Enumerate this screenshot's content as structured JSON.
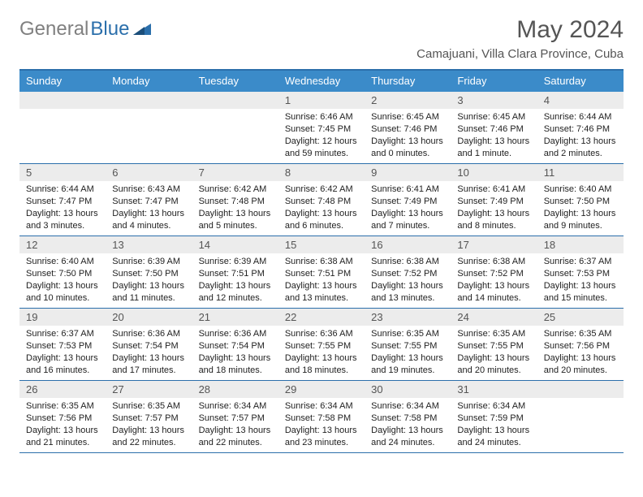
{
  "logo": {
    "gray": "General",
    "blue": "Blue"
  },
  "title": "May 2024",
  "subtitle": "Camajuani, Villa Clara Province, Cuba",
  "colors": {
    "header_bg": "#3b8bc9",
    "border": "#2b6fab",
    "daynum_bg": "#ececec",
    "title_color": "#555555"
  },
  "dayNames": [
    "Sunday",
    "Monday",
    "Tuesday",
    "Wednesday",
    "Thursday",
    "Friday",
    "Saturday"
  ],
  "weeks": [
    [
      {
        "day": "",
        "sunrise": "",
        "sunset": "",
        "daylight": ""
      },
      {
        "day": "",
        "sunrise": "",
        "sunset": "",
        "daylight": ""
      },
      {
        "day": "",
        "sunrise": "",
        "sunset": "",
        "daylight": ""
      },
      {
        "day": "1",
        "sunrise": "Sunrise: 6:46 AM",
        "sunset": "Sunset: 7:45 PM",
        "daylight": "Daylight: 12 hours and 59 minutes."
      },
      {
        "day": "2",
        "sunrise": "Sunrise: 6:45 AM",
        "sunset": "Sunset: 7:46 PM",
        "daylight": "Daylight: 13 hours and 0 minutes."
      },
      {
        "day": "3",
        "sunrise": "Sunrise: 6:45 AM",
        "sunset": "Sunset: 7:46 PM",
        "daylight": "Daylight: 13 hours and 1 minute."
      },
      {
        "day": "4",
        "sunrise": "Sunrise: 6:44 AM",
        "sunset": "Sunset: 7:46 PM",
        "daylight": "Daylight: 13 hours and 2 minutes."
      }
    ],
    [
      {
        "day": "5",
        "sunrise": "Sunrise: 6:44 AM",
        "sunset": "Sunset: 7:47 PM",
        "daylight": "Daylight: 13 hours and 3 minutes."
      },
      {
        "day": "6",
        "sunrise": "Sunrise: 6:43 AM",
        "sunset": "Sunset: 7:47 PM",
        "daylight": "Daylight: 13 hours and 4 minutes."
      },
      {
        "day": "7",
        "sunrise": "Sunrise: 6:42 AM",
        "sunset": "Sunset: 7:48 PM",
        "daylight": "Daylight: 13 hours and 5 minutes."
      },
      {
        "day": "8",
        "sunrise": "Sunrise: 6:42 AM",
        "sunset": "Sunset: 7:48 PM",
        "daylight": "Daylight: 13 hours and 6 minutes."
      },
      {
        "day": "9",
        "sunrise": "Sunrise: 6:41 AM",
        "sunset": "Sunset: 7:49 PM",
        "daylight": "Daylight: 13 hours and 7 minutes."
      },
      {
        "day": "10",
        "sunrise": "Sunrise: 6:41 AM",
        "sunset": "Sunset: 7:49 PM",
        "daylight": "Daylight: 13 hours and 8 minutes."
      },
      {
        "day": "11",
        "sunrise": "Sunrise: 6:40 AM",
        "sunset": "Sunset: 7:50 PM",
        "daylight": "Daylight: 13 hours and 9 minutes."
      }
    ],
    [
      {
        "day": "12",
        "sunrise": "Sunrise: 6:40 AM",
        "sunset": "Sunset: 7:50 PM",
        "daylight": "Daylight: 13 hours and 10 minutes."
      },
      {
        "day": "13",
        "sunrise": "Sunrise: 6:39 AM",
        "sunset": "Sunset: 7:50 PM",
        "daylight": "Daylight: 13 hours and 11 minutes."
      },
      {
        "day": "14",
        "sunrise": "Sunrise: 6:39 AM",
        "sunset": "Sunset: 7:51 PM",
        "daylight": "Daylight: 13 hours and 12 minutes."
      },
      {
        "day": "15",
        "sunrise": "Sunrise: 6:38 AM",
        "sunset": "Sunset: 7:51 PM",
        "daylight": "Daylight: 13 hours and 13 minutes."
      },
      {
        "day": "16",
        "sunrise": "Sunrise: 6:38 AM",
        "sunset": "Sunset: 7:52 PM",
        "daylight": "Daylight: 13 hours and 13 minutes."
      },
      {
        "day": "17",
        "sunrise": "Sunrise: 6:38 AM",
        "sunset": "Sunset: 7:52 PM",
        "daylight": "Daylight: 13 hours and 14 minutes."
      },
      {
        "day": "18",
        "sunrise": "Sunrise: 6:37 AM",
        "sunset": "Sunset: 7:53 PM",
        "daylight": "Daylight: 13 hours and 15 minutes."
      }
    ],
    [
      {
        "day": "19",
        "sunrise": "Sunrise: 6:37 AM",
        "sunset": "Sunset: 7:53 PM",
        "daylight": "Daylight: 13 hours and 16 minutes."
      },
      {
        "day": "20",
        "sunrise": "Sunrise: 6:36 AM",
        "sunset": "Sunset: 7:54 PM",
        "daylight": "Daylight: 13 hours and 17 minutes."
      },
      {
        "day": "21",
        "sunrise": "Sunrise: 6:36 AM",
        "sunset": "Sunset: 7:54 PM",
        "daylight": "Daylight: 13 hours and 18 minutes."
      },
      {
        "day": "22",
        "sunrise": "Sunrise: 6:36 AM",
        "sunset": "Sunset: 7:55 PM",
        "daylight": "Daylight: 13 hours and 18 minutes."
      },
      {
        "day": "23",
        "sunrise": "Sunrise: 6:35 AM",
        "sunset": "Sunset: 7:55 PM",
        "daylight": "Daylight: 13 hours and 19 minutes."
      },
      {
        "day": "24",
        "sunrise": "Sunrise: 6:35 AM",
        "sunset": "Sunset: 7:55 PM",
        "daylight": "Daylight: 13 hours and 20 minutes."
      },
      {
        "day": "25",
        "sunrise": "Sunrise: 6:35 AM",
        "sunset": "Sunset: 7:56 PM",
        "daylight": "Daylight: 13 hours and 20 minutes."
      }
    ],
    [
      {
        "day": "26",
        "sunrise": "Sunrise: 6:35 AM",
        "sunset": "Sunset: 7:56 PM",
        "daylight": "Daylight: 13 hours and 21 minutes."
      },
      {
        "day": "27",
        "sunrise": "Sunrise: 6:35 AM",
        "sunset": "Sunset: 7:57 PM",
        "daylight": "Daylight: 13 hours and 22 minutes."
      },
      {
        "day": "28",
        "sunrise": "Sunrise: 6:34 AM",
        "sunset": "Sunset: 7:57 PM",
        "daylight": "Daylight: 13 hours and 22 minutes."
      },
      {
        "day": "29",
        "sunrise": "Sunrise: 6:34 AM",
        "sunset": "Sunset: 7:58 PM",
        "daylight": "Daylight: 13 hours and 23 minutes."
      },
      {
        "day": "30",
        "sunrise": "Sunrise: 6:34 AM",
        "sunset": "Sunset: 7:58 PM",
        "daylight": "Daylight: 13 hours and 24 minutes."
      },
      {
        "day": "31",
        "sunrise": "Sunrise: 6:34 AM",
        "sunset": "Sunset: 7:59 PM",
        "daylight": "Daylight: 13 hours and 24 minutes."
      },
      {
        "day": "",
        "sunrise": "",
        "sunset": "",
        "daylight": ""
      }
    ]
  ]
}
